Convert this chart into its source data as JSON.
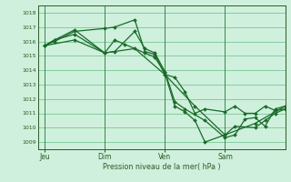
{
  "background_color": "#cff0dc",
  "plot_bg_color": "#cff0dc",
  "grid_color": "#6abf8a",
  "line_color": "#1a6b2a",
  "marker_color": "#1a6b2a",
  "xlabel": "Pression niveau de la mer( hPa )",
  "ylim": [
    1008.5,
    1018.5
  ],
  "yticks": [
    1009,
    1010,
    1011,
    1012,
    1013,
    1014,
    1015,
    1016,
    1017,
    1018
  ],
  "xtick_labels": [
    "Jeu",
    "Dim",
    "Ven",
    "Sam"
  ],
  "xtick_positions": [
    0,
    36,
    72,
    108
  ],
  "xlim": [
    -4,
    144
  ],
  "vlines": [
    0,
    36,
    72,
    108
  ],
  "series": [
    {
      "x": [
        0,
        6,
        18,
        36,
        42,
        54,
        60,
        66,
        72,
        78,
        84,
        90,
        96,
        108,
        114,
        120,
        126,
        132,
        138,
        144
      ],
      "y": [
        1015.7,
        1016.0,
        1016.7,
        1016.9,
        1017.0,
        1017.5,
        1015.3,
        1015.1,
        1013.7,
        1013.5,
        1012.5,
        1011.0,
        1011.3,
        1011.1,
        1011.5,
        1011.0,
        1011.0,
        1011.5,
        1011.2,
        1011.3
      ]
    },
    {
      "x": [
        0,
        6,
        18,
        36,
        42,
        48,
        60,
        66,
        72,
        78,
        84,
        90,
        96,
        108,
        114,
        126,
        132,
        138,
        144
      ],
      "y": [
        1015.7,
        1016.1,
        1016.8,
        1015.2,
        1016.1,
        1015.8,
        1015.2,
        1014.9,
        1013.8,
        1011.5,
        1011.1,
        1010.5,
        1009.0,
        1009.5,
        1010.1,
        1010.0,
        1010.5,
        1011.0,
        1011.3
      ]
    },
    {
      "x": [
        0,
        6,
        18,
        36,
        42,
        54,
        60,
        66,
        72,
        78,
        84,
        96,
        108,
        114,
        120,
        126,
        132,
        138,
        144
      ],
      "y": [
        1015.7,
        1016.1,
        1016.5,
        1015.2,
        1015.3,
        1016.7,
        1015.5,
        1015.2,
        1013.9,
        1011.8,
        1011.3,
        1010.5,
        1009.3,
        1009.5,
        1010.6,
        1010.7,
        1010.1,
        1011.3,
        1011.5
      ]
    },
    {
      "x": [
        0,
        18,
        36,
        54,
        72,
        90,
        108,
        126,
        144
      ],
      "y": [
        1015.7,
        1016.1,
        1015.2,
        1015.5,
        1013.7,
        1011.5,
        1009.5,
        1010.3,
        1011.5
      ]
    }
  ]
}
